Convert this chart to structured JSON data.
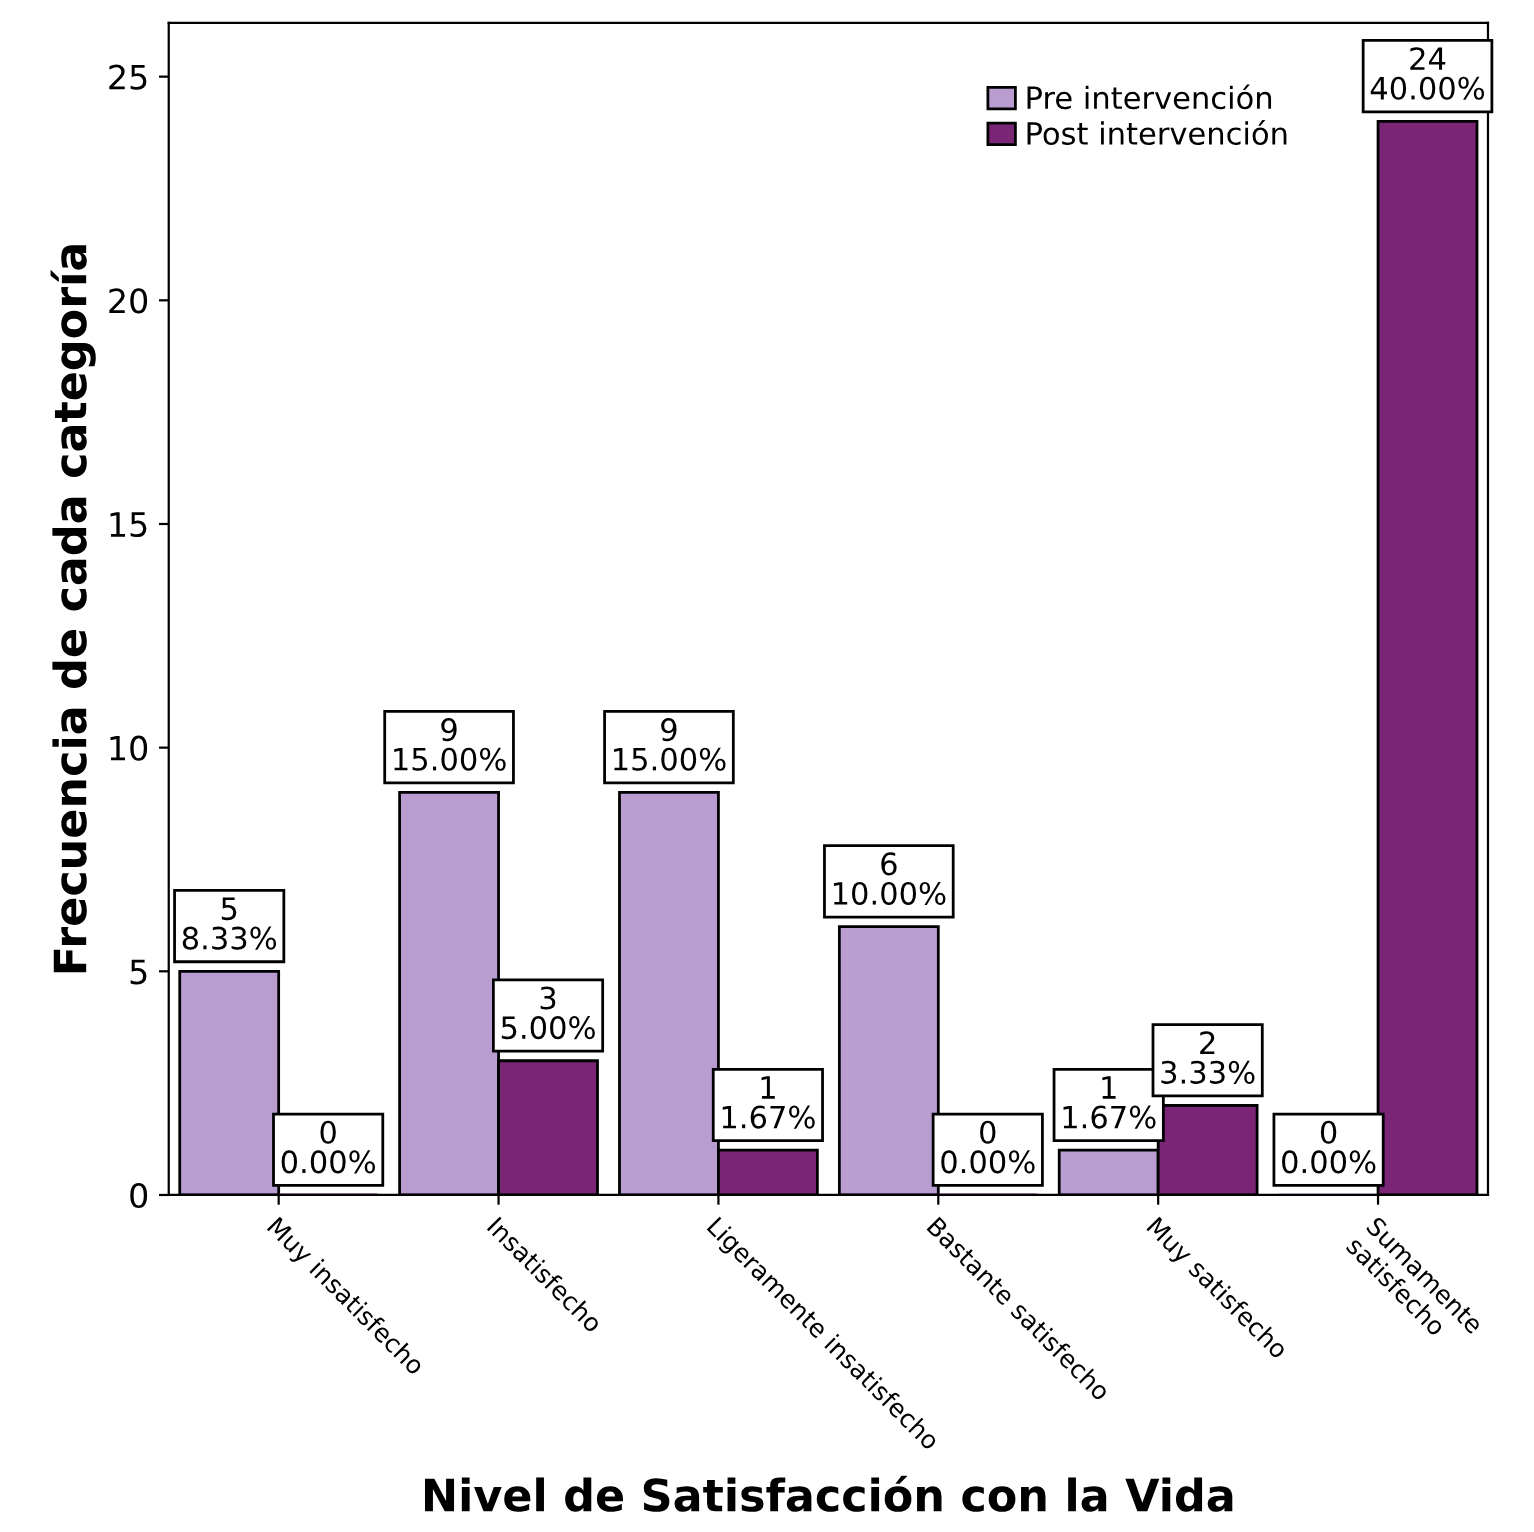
{
  "chart_data": {
    "type": "bar",
    "xlabel": "Nivel de Satisfacción con la Vida",
    "ylabel": "Frecuencia de cada categoría",
    "categories": [
      "Muy insatisfecho",
      "Insatisfecho",
      "Ligeramente insatisfecho",
      "Bastante satisfecho",
      "Muy satisfecho",
      "Sumamente\nsatisfecho"
    ],
    "series": [
      {
        "name": "Pre intervención",
        "color": "#b99dd0",
        "values": [
          5,
          9,
          9,
          6,
          1,
          0
        ],
        "value_labels": [
          "5\n8.33%",
          "9\n15.00%",
          "9\n15.00%",
          "6\n10.00%",
          "1\n1.67%",
          "0\n0.00%"
        ]
      },
      {
        "name": "Post intervención",
        "color": "#7b2577",
        "values": [
          0,
          3,
          1,
          0,
          2,
          24
        ],
        "value_labels": [
          "0\n0.00%",
          "3\n5.00%",
          "1\n1.67%",
          "0\n0.00%",
          "2\n3.33%",
          "24\n40.00%"
        ]
      }
    ],
    "ylim": [
      0,
      26.2
    ],
    "yticks": [
      0,
      5,
      10,
      15,
      20,
      25
    ],
    "grid": false,
    "legend": "top right"
  }
}
